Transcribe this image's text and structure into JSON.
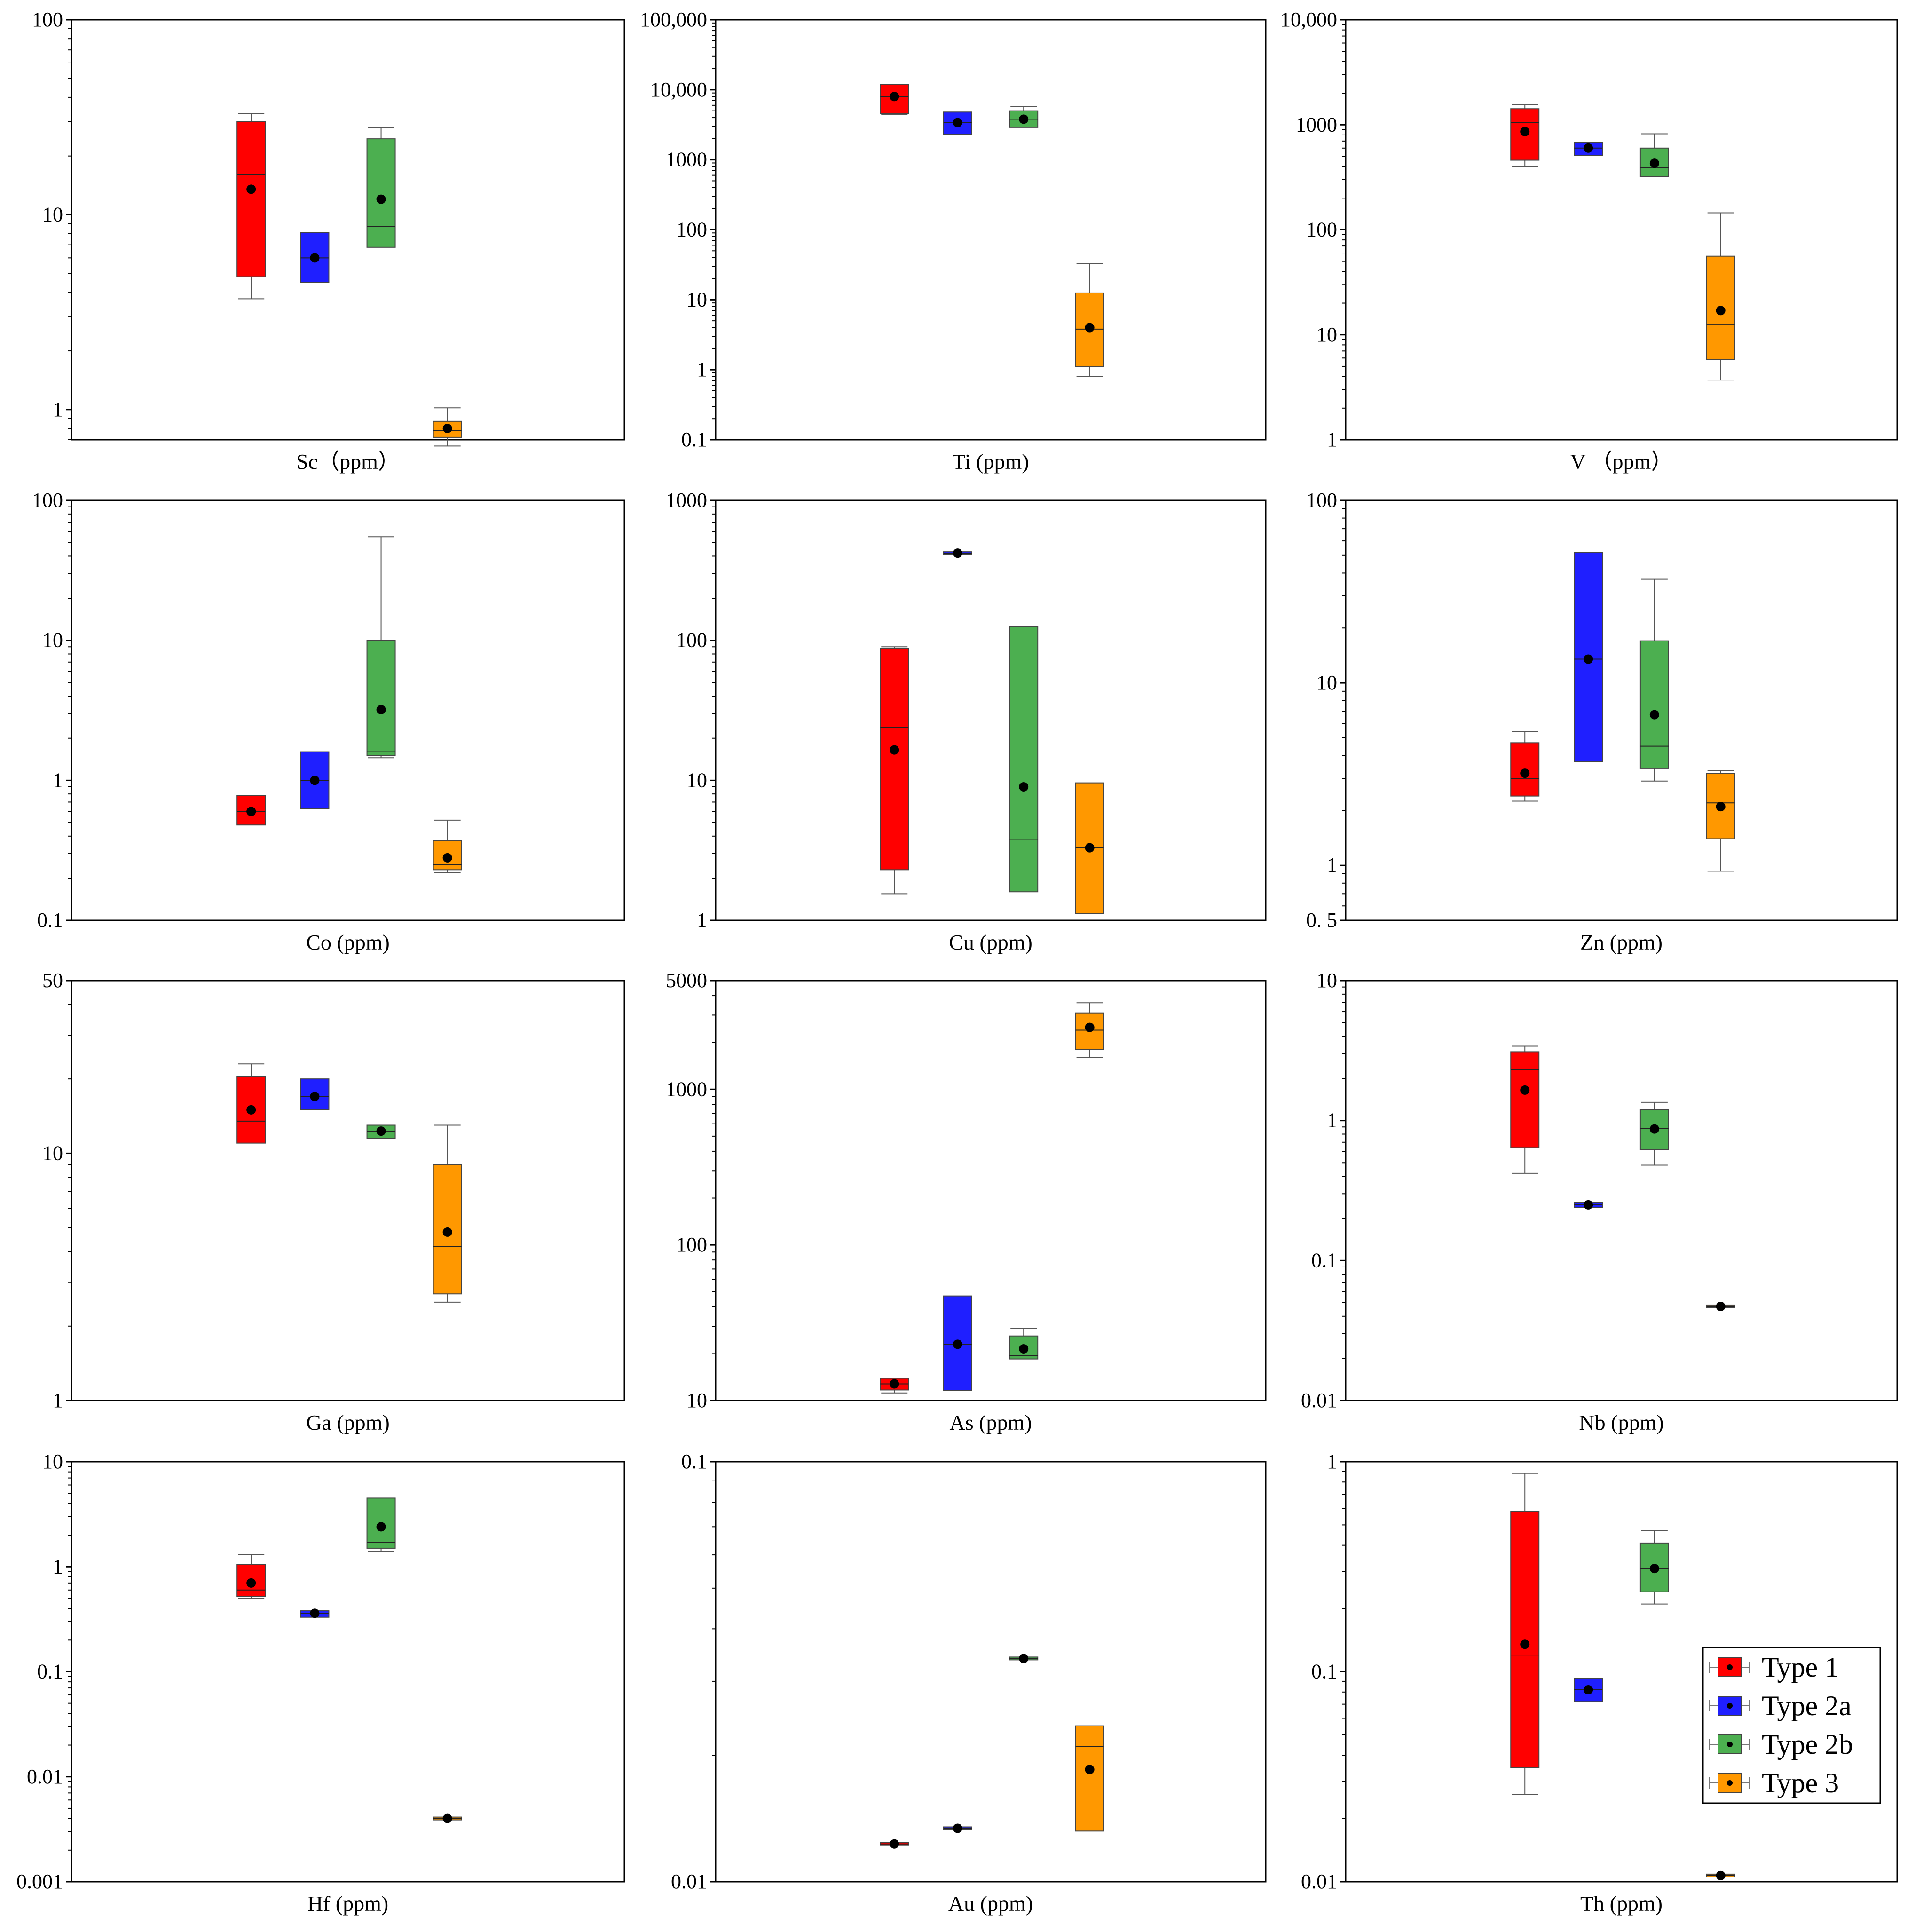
{
  "colors": {
    "Type 1": "#ff0000",
    "Type 2a": "#1f1fff",
    "Type 2b": "#4caf50",
    "Type 3": "#ff9800",
    "axis": "#000000"
  },
  "legend": {
    "placement": "inside bottom-right of Th (ppm) panel",
    "entries": [
      "Type 1",
      "Type 2a",
      "Type 2b",
      "Type 3"
    ]
  },
  "chart_data": [
    {
      "type": "box",
      "scale": "log",
      "xlabel": "Sc（ppm）",
      "ylim": [
        0.7,
        100
      ],
      "ticks": [
        1,
        10,
        100
      ],
      "tick_labels": [
        "1",
        "10",
        "100"
      ],
      "boxes": [
        {
          "series": "Type 1",
          "min": 3.7,
          "q1": 4.8,
          "median": 16,
          "q3": 30,
          "max": 33,
          "mean": 13.5
        },
        {
          "series": "Type 2a",
          "min": 4.5,
          "q1": 4.5,
          "median": 6,
          "q3": 8.1,
          "max": 8.1,
          "mean": 6
        },
        {
          "series": "Type 2b",
          "min": 6.8,
          "q1": 6.8,
          "median": 8.7,
          "q3": 24.5,
          "max": 28,
          "mean": 12
        },
        {
          "series": "Type 3",
          "min": 0.65,
          "q1": 0.72,
          "median": 0.78,
          "q3": 0.87,
          "max": 1.02,
          "mean": 0.8
        }
      ]
    },
    {
      "type": "box",
      "scale": "log",
      "xlabel": "Ti (ppm)",
      "ylim": [
        0.1,
        100000
      ],
      "ticks": [
        0.1,
        1,
        10,
        100,
        1000,
        10000,
        100000
      ],
      "tick_labels": [
        "0.1",
        "1",
        "10",
        "100",
        "1000",
        "10,000",
        "100,000"
      ],
      "boxes": [
        {
          "series": "Type 1",
          "min": 4400,
          "q1": 4600,
          "median": 8000,
          "q3": 12000,
          "max": 12000,
          "mean": 8000
        },
        {
          "series": "Type 2a",
          "min": 2300,
          "q1": 2300,
          "median": 3400,
          "q3": 4800,
          "max": 4800,
          "mean": 3400
        },
        {
          "series": "Type 2b",
          "min": 2900,
          "q1": 2900,
          "median": 3800,
          "q3": 5000,
          "max": 5800,
          "mean": 3800
        },
        {
          "series": "Type 3",
          "min": 0.8,
          "q1": 1.1,
          "median": 3.8,
          "q3": 12.5,
          "max": 33,
          "mean": 4
        }
      ]
    },
    {
      "type": "box",
      "scale": "log",
      "xlabel": "V （ppm）",
      "ylim": [
        1,
        10000
      ],
      "ticks": [
        1,
        10,
        100,
        1000,
        10000
      ],
      "tick_labels": [
        "1",
        "10",
        "100",
        "1000",
        "10,000"
      ],
      "boxes": [
        {
          "series": "Type 1",
          "min": 400,
          "q1": 460,
          "median": 1050,
          "q3": 1420,
          "max": 1560,
          "mean": 860
        },
        {
          "series": "Type 2a",
          "min": 510,
          "q1": 510,
          "median": 600,
          "q3": 680,
          "max": 680,
          "mean": 600
        },
        {
          "series": "Type 2b",
          "min": 320,
          "q1": 320,
          "median": 390,
          "q3": 600,
          "max": 820,
          "mean": 430
        },
        {
          "series": "Type 3",
          "min": 3.7,
          "q1": 5.8,
          "median": 12.5,
          "q3": 56,
          "max": 145,
          "mean": 17
        }
      ]
    },
    {
      "type": "box",
      "scale": "log",
      "xlabel": "Co (ppm)",
      "ylim": [
        0.1,
        100
      ],
      "ticks": [
        0.1,
        1,
        10,
        100
      ],
      "tick_labels": [
        "0.1",
        "1",
        "10",
        "100"
      ],
      "boxes": [
        {
          "series": "Type 1",
          "min": 0.48,
          "q1": 0.48,
          "median": 0.6,
          "q3": 0.78,
          "max": 0.78,
          "mean": 0.6
        },
        {
          "series": "Type 2a",
          "min": 0.63,
          "q1": 0.63,
          "median": 1,
          "q3": 1.6,
          "max": 1.6,
          "mean": 1
        },
        {
          "series": "Type 2b",
          "min": 1.45,
          "q1": 1.5,
          "median": 1.6,
          "q3": 10,
          "max": 55,
          "mean": 3.2
        },
        {
          "series": "Type 3",
          "min": 0.22,
          "q1": 0.23,
          "median": 0.25,
          "q3": 0.37,
          "max": 0.52,
          "mean": 0.28
        }
      ]
    },
    {
      "type": "box",
      "scale": "log",
      "xlabel": "Cu (ppm)",
      "ylim": [
        1,
        1000
      ],
      "ticks": [
        1,
        10,
        100,
        1000
      ],
      "tick_labels": [
        "1",
        "10",
        "100",
        "1000"
      ],
      "boxes": [
        {
          "series": "Type 1",
          "min": 1.55,
          "q1": 2.3,
          "median": 24,
          "q3": 88,
          "max": 90,
          "mean": 16.5
        },
        {
          "series": "Type 2a",
          "min": 420,
          "q1": 420,
          "median": 420,
          "q3": 420,
          "max": 420,
          "mean": 420
        },
        {
          "series": "Type 2b",
          "min": 1.6,
          "q1": 1.6,
          "median": 3.8,
          "q3": 125,
          "max": 125,
          "mean": 9
        },
        {
          "series": "Type 3",
          "min": 1.12,
          "q1": 1.12,
          "median": 3.3,
          "q3": 9.6,
          "max": 9.6,
          "mean": 3.3
        }
      ]
    },
    {
      "type": "box",
      "scale": "log",
      "xlabel": "Zn (ppm)",
      "ylim": [
        0.5,
        100
      ],
      "ticks": [
        0.5,
        1,
        10,
        100
      ],
      "tick_labels": [
        "0. 5",
        "1",
        "10",
        "100"
      ],
      "boxes": [
        {
          "series": "Type 1",
          "min": 2.25,
          "q1": 2.4,
          "median": 3,
          "q3": 4.7,
          "max": 5.4,
          "mean": 3.2
        },
        {
          "series": "Type 2a",
          "min": 3.7,
          "q1": 3.7,
          "median": 13.5,
          "q3": 52,
          "max": 52,
          "mean": 13.5
        },
        {
          "series": "Type 2b",
          "min": 2.9,
          "q1": 3.4,
          "median": 4.5,
          "q3": 17,
          "max": 37,
          "mean": 6.7
        },
        {
          "series": "Type 3",
          "min": 0.93,
          "q1": 1.4,
          "median": 2.2,
          "q3": 3.2,
          "max": 3.3,
          "mean": 2.1
        }
      ]
    },
    {
      "type": "box",
      "scale": "log",
      "xlabel": "Ga (ppm)",
      "ylim": [
        1,
        50
      ],
      "ticks": [
        1,
        10,
        50
      ],
      "tick_labels": [
        "1",
        "10",
        "50"
      ],
      "boxes": [
        {
          "series": "Type 1",
          "min": 11,
          "q1": 11,
          "median": 13.5,
          "q3": 20.5,
          "max": 23,
          "mean": 15
        },
        {
          "series": "Type 2a",
          "min": 15,
          "q1": 15,
          "median": 17,
          "q3": 20,
          "max": 20,
          "mean": 17
        },
        {
          "series": "Type 2b",
          "min": 11.5,
          "q1": 11.5,
          "median": 12.3,
          "q3": 13,
          "max": 13,
          "mean": 12.3
        },
        {
          "series": "Type 3",
          "min": 2.5,
          "q1": 2.7,
          "median": 4.2,
          "q3": 9,
          "max": 13,
          "mean": 4.8
        }
      ]
    },
    {
      "type": "box",
      "scale": "log",
      "xlabel": "As (ppm)",
      "ylim": [
        10,
        5000
      ],
      "ticks": [
        10,
        100,
        1000,
        5000
      ],
      "tick_labels": [
        "10",
        "100",
        "1000",
        "5000"
      ],
      "boxes": [
        {
          "series": "Type 1",
          "min": 11.2,
          "q1": 11.7,
          "median": 12.8,
          "q3": 13.9,
          "max": 13.9,
          "mean": 12.8
        },
        {
          "series": "Type 2a",
          "min": 11.6,
          "q1": 11.6,
          "median": 23,
          "q3": 47,
          "max": 47,
          "mean": 23
        },
        {
          "series": "Type 2b",
          "min": 18.5,
          "q1": 18.5,
          "median": 19.5,
          "q3": 26,
          "max": 29,
          "mean": 21.5
        },
        {
          "series": "Type 3",
          "min": 1600,
          "q1": 1800,
          "median": 2400,
          "q3": 3100,
          "max": 3600,
          "mean": 2500
        }
      ]
    },
    {
      "type": "box",
      "scale": "log",
      "xlabel": "Nb (ppm)",
      "ylim": [
        0.01,
        10
      ],
      "ticks": [
        0.01,
        0.1,
        1,
        10
      ],
      "tick_labels": [
        "0.01",
        "0.1",
        "1",
        "10"
      ],
      "boxes": [
        {
          "series": "Type 1",
          "min": 0.42,
          "q1": 0.64,
          "median": 2.3,
          "q3": 3.1,
          "max": 3.4,
          "mean": 1.65
        },
        {
          "series": "Type 2a",
          "min": 0.24,
          "q1": 0.24,
          "median": 0.25,
          "q3": 0.26,
          "max": 0.26,
          "mean": 0.25
        },
        {
          "series": "Type 2b",
          "min": 0.48,
          "q1": 0.62,
          "median": 0.88,
          "q3": 1.2,
          "max": 1.35,
          "mean": 0.87
        },
        {
          "series": "Type 3",
          "min": 0.047,
          "q1": 0.047,
          "median": 0.047,
          "q3": 0.047,
          "max": 0.047,
          "mean": 0.047
        }
      ]
    },
    {
      "type": "box",
      "scale": "log",
      "xlabel": "Hf (ppm)",
      "ylim": [
        0.001,
        10
      ],
      "ticks": [
        0.001,
        0.01,
        0.1,
        1,
        10
      ],
      "tick_labels": [
        "0.001",
        "0.01",
        "0.1",
        "1",
        "10"
      ],
      "boxes": [
        {
          "series": "Type 1",
          "min": 0.5,
          "q1": 0.52,
          "median": 0.6,
          "q3": 1.05,
          "max": 1.3,
          "mean": 0.7
        },
        {
          "series": "Type 2a",
          "min": 0.33,
          "q1": 0.33,
          "median": 0.36,
          "q3": 0.38,
          "max": 0.38,
          "mean": 0.36
        },
        {
          "series": "Type 2b",
          "min": 1.4,
          "q1": 1.5,
          "median": 1.7,
          "q3": 4.5,
          "max": 4.5,
          "mean": 2.4
        },
        {
          "series": "Type 3",
          "min": 0.004,
          "q1": 0.004,
          "median": 0.004,
          "q3": 0.004,
          "max": 0.004,
          "mean": 0.004
        }
      ]
    },
    {
      "type": "box",
      "scale": "log",
      "xlabel": "Au (ppm)",
      "ylim": [
        0.01,
        0.1
      ],
      "ticks": [
        0.01,
        0.1
      ],
      "tick_labels": [
        "0.01",
        "0.1"
      ],
      "boxes": [
        {
          "series": "Type 1",
          "min": 0.0123,
          "q1": 0.0123,
          "median": 0.0123,
          "q3": 0.0123,
          "max": 0.0123,
          "mean": 0.0123
        },
        {
          "series": "Type 2a",
          "min": 0.0134,
          "q1": 0.0134,
          "median": 0.0134,
          "q3": 0.0134,
          "max": 0.0134,
          "mean": 0.0134
        },
        {
          "series": "Type 2b",
          "min": 0.034,
          "q1": 0.034,
          "median": 0.034,
          "q3": 0.034,
          "max": 0.034,
          "mean": 0.034
        },
        {
          "series": "Type 3",
          "min": 0.0132,
          "q1": 0.0132,
          "median": 0.021,
          "q3": 0.0235,
          "max": 0.0235,
          "mean": 0.0185
        }
      ]
    },
    {
      "type": "box",
      "scale": "log",
      "xlabel": "Th (ppm)",
      "ylim": [
        0.01,
        1
      ],
      "ticks": [
        0.01,
        0.1,
        1
      ],
      "tick_labels": [
        "0.01",
        "0.1",
        "1"
      ],
      "boxes": [
        {
          "series": "Type 1",
          "min": 0.026,
          "q1": 0.035,
          "median": 0.12,
          "q3": 0.58,
          "max": 0.88,
          "mean": 0.135
        },
        {
          "series": "Type 2a",
          "min": 0.072,
          "q1": 0.072,
          "median": 0.082,
          "q3": 0.093,
          "max": 0.093,
          "mean": 0.082
        },
        {
          "series": "Type 2b",
          "min": 0.21,
          "q1": 0.24,
          "median": 0.31,
          "q3": 0.41,
          "max": 0.47,
          "mean": 0.31
        },
        {
          "series": "Type 3",
          "min": 0.0107,
          "q1": 0.0107,
          "median": 0.0107,
          "q3": 0.0107,
          "max": 0.0107,
          "mean": 0.0107
        }
      ]
    }
  ]
}
